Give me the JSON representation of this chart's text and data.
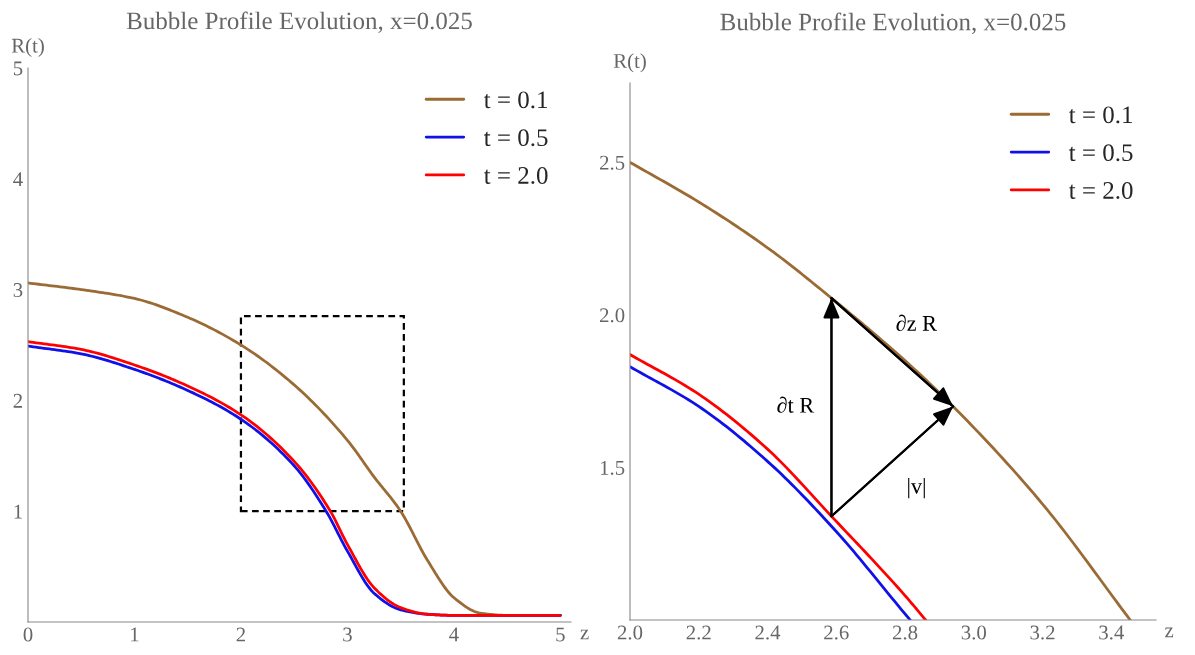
{
  "chart_data": [
    {
      "type": "line",
      "title": "Bubble Profile Evolution, x=0.025",
      "xlabel": "z",
      "ylabel": "R(t)",
      "xlim": [
        0,
        5.1
      ],
      "ylim": [
        0,
        5
      ],
      "xticks": [
        0,
        1,
        2,
        3,
        4,
        5
      ],
      "yticks": [
        1,
        2,
        3,
        4,
        5
      ],
      "legend": "top right",
      "grid": false,
      "marker": "none",
      "line_style": "solid",
      "series": [
        {
          "name": "t = 0.1",
          "color": "#9b6b35",
          "x": [
            0,
            0.5,
            1,
            1.5,
            2,
            2.5,
            3,
            3.25,
            3.5,
            3.75,
            4,
            4.25,
            4.5,
            5
          ],
          "values": [
            3.06,
            3.0,
            2.92,
            2.75,
            2.5,
            2.14,
            1.64,
            1.31,
            1.0,
            0.56,
            0.22,
            0.08,
            0.06,
            0.06
          ]
        },
        {
          "name": "t = 0.5",
          "color": "#1010e8",
          "x": [
            0,
            0.5,
            1,
            1.5,
            2,
            2.5,
            2.8,
            3,
            3.25,
            3.5,
            3.75,
            4,
            5
          ],
          "values": [
            2.49,
            2.42,
            2.28,
            2.09,
            1.83,
            1.41,
            1.0,
            0.64,
            0.26,
            0.11,
            0.07,
            0.06,
            0.06
          ]
        },
        {
          "name": "t = 2.0",
          "color": "#ff0000",
          "x": [
            0,
            0.5,
            1,
            1.5,
            2,
            2.5,
            2.84,
            3,
            3.25,
            3.5,
            3.75,
            4,
            5
          ],
          "values": [
            2.53,
            2.46,
            2.32,
            2.13,
            1.87,
            1.45,
            1.0,
            0.7,
            0.31,
            0.13,
            0.07,
            0.06,
            0.06
          ]
        }
      ]
    },
    {
      "type": "line",
      "title": "Bubble Profile Evolution, x=0.025",
      "xlabel": "z",
      "ylabel": "R(t)",
      "xlim": [
        2.0,
        3.53
      ],
      "ylim": [
        1.0,
        2.76
      ],
      "xticks": [
        {
          "value": 2.0,
          "label": "2.0"
        },
        2.2,
        2.4,
        2.6,
        2.8,
        {
          "value": 3.0,
          "label": "3.0"
        },
        3.2,
        3.4
      ],
      "yticks": [
        1.5,
        {
          "value": 2.0,
          "label": "2.0"
        },
        2.5
      ],
      "legend": "top right",
      "grid": false,
      "marker": "none",
      "line_style": "solid",
      "series": [
        {
          "name": "t = 0.1",
          "color": "#9b6b35",
          "x": [
            2.0,
            2.2,
            2.4,
            2.586,
            2.8,
            2.94,
            3.2,
            3.455
          ],
          "values": [
            2.5,
            2.37,
            2.22,
            2.055,
            1.85,
            1.7,
            1.38,
            1.0
          ]
        },
        {
          "name": "t = 0.5",
          "color": "#1010e8",
          "x": [
            2.0,
            2.2,
            2.4,
            2.6,
            2.8,
            2.815
          ],
          "values": [
            1.83,
            1.7,
            1.52,
            1.29,
            1.02,
            1.0
          ]
        },
        {
          "name": "t = 2.0",
          "color": "#ff0000",
          "x": [
            2.0,
            2.2,
            2.4,
            2.586,
            2.8,
            2.86
          ],
          "values": [
            1.87,
            1.74,
            1.56,
            1.34,
            1.08,
            1.0
          ]
        },
        {
          "type": "line",
          "color": "#000000",
          "x": [
            2.586,
            2.586
          ],
          "values": [
            1.34,
            2.055
          ]
        },
        {
          "type": "line",
          "color": "#000000",
          "x": [
            2.586,
            2.94
          ],
          "values": [
            2.055,
            1.7
          ]
        },
        {
          "type": "line",
          "color": "#000000",
          "x": [
            2.586,
            2.94
          ],
          "values": [
            1.34,
            1.7
          ]
        }
      ],
      "annotations": [
        "∂t R",
        "∂z R",
        "|v|"
      ]
    }
  ]
}
